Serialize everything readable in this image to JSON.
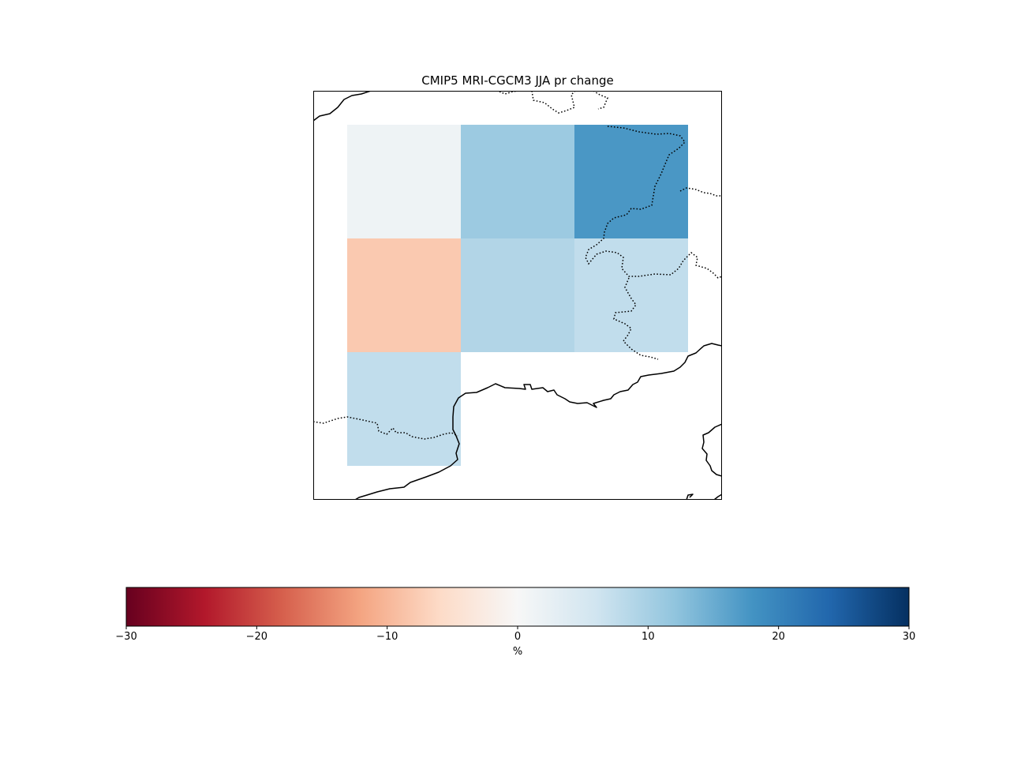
{
  "chart_data": {
    "type": "heatmap",
    "title": "CMIP5 MRI-CGCM3 JJA pr change",
    "grid_rows": [
      [
        1.5,
        11.0,
        17.5
      ],
      [
        -8.0,
        9.0,
        7.5
      ],
      [
        7.5,
        null,
        null
      ]
    ],
    "colorbar": {
      "colormap": "RdBu",
      "vmin": -30,
      "vmax": 30,
      "ticks": [
        -30,
        -20,
        -10,
        0,
        10,
        20,
        30
      ],
      "tick_labels": [
        "−30",
        "−20",
        "−10",
        "0",
        "10",
        "20",
        "30"
      ],
      "label": "%",
      "orientation": "horizontal"
    },
    "map_features": [
      "coastlines",
      "country-borders"
    ],
    "colors": {
      "colormap_stops": [
        "#67001f",
        "#b2182b",
        "#d6604d",
        "#f4a582",
        "#fddbc7",
        "#f7f7f7",
        "#d1e5f0",
        "#92c5de",
        "#4393c3",
        "#2166ac",
        "#053061"
      ],
      "coastline": "#000000",
      "frame": "#000000"
    }
  }
}
